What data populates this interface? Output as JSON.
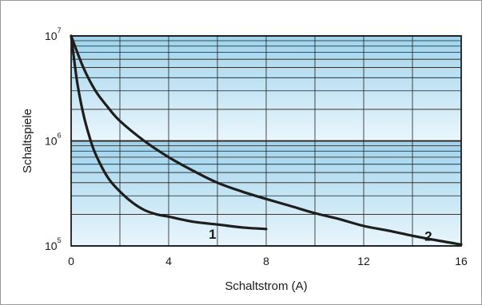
{
  "chart_data": {
    "type": "line",
    "xlabel": "Schaltstrom (A)",
    "ylabel": "Schaltspiele",
    "xlim": [
      0,
      16
    ],
    "ylim": [
      100000,
      10000000
    ],
    "yscale": "log",
    "x_ticks": [
      "0",
      "4",
      "8",
      "12",
      "16"
    ],
    "y_ticks": [
      {
        "base": "10",
        "exp": "5"
      },
      {
        "base": "10",
        "exp": "6"
      },
      {
        "base": "10",
        "exp": "7"
      }
    ],
    "grid": true,
    "series": [
      {
        "name": "1",
        "x": [
          0,
          0.25,
          0.5,
          0.75,
          1,
          1.5,
          2,
          2.5,
          3,
          3.5,
          4,
          5,
          6,
          7,
          8
        ],
        "y": [
          10000000,
          3600000,
          1800000,
          1100000,
          750000,
          450000,
          330000,
          260000,
          220000,
          200000,
          190000,
          170000,
          160000,
          150000,
          145000
        ]
      },
      {
        "name": "2",
        "x": [
          0,
          0.5,
          1,
          1.5,
          2,
          3,
          4,
          5,
          6,
          7,
          8,
          9,
          10,
          11,
          12,
          13,
          14,
          15,
          16
        ],
        "y": [
          10000000,
          5000000,
          3000000,
          2100000,
          1550000,
          1000000,
          700000,
          520000,
          400000,
          330000,
          280000,
          240000,
          205000,
          180000,
          155000,
          140000,
          125000,
          113000,
          103000
        ]
      }
    ]
  },
  "colors": {
    "band_top": "#9fd3ec",
    "band_bottom": "#eaf6fc",
    "curve": "#1e1e1e",
    "grid": "#1e1e1e",
    "frame": "#9a9a9a"
  }
}
